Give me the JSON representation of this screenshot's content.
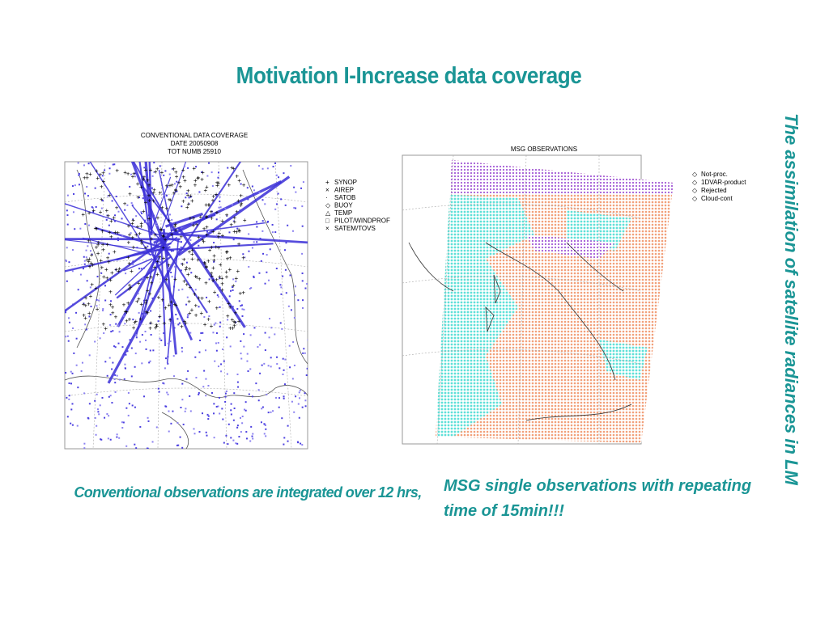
{
  "title": "Motivation I-Increase data coverage",
  "side_title": "The assimilation of satellite radiances in LM",
  "left_figure": {
    "title_lines": [
      "CONVENTIONAL DATA COVERAGE",
      "DATE 20050908",
      "TOT NUMB   25910"
    ],
    "legend": [
      "SYNOP",
      "AIREP",
      "SATOB",
      "BUOY",
      "TEMP",
      "PILOT/WINDPROF",
      "SATEM/TOVS"
    ]
  },
  "right_figure": {
    "title": "MSG OBSERVATIONS",
    "legend": [
      "Not-proc.",
      "1DVAR-product",
      "Rejected",
      "Cloud-cont"
    ]
  },
  "captions": {
    "left": "Conventional observations are integrated over 12 hrs,",
    "right": "MSG  single observations with repeating time of 15min!!!"
  }
}
